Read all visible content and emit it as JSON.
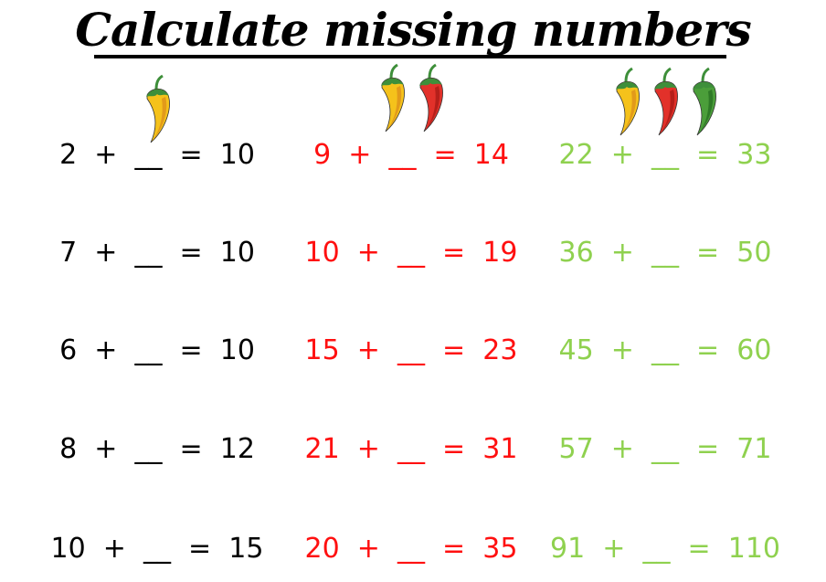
{
  "title": "Calculate missing numbers",
  "colors": {
    "easy": "#000000",
    "medium": "#ff1010",
    "hard": "#8fd14f"
  },
  "columns": [
    {
      "level": "easy",
      "chilis": [
        "yellow"
      ],
      "equations": [
        "2 + __ = 10",
        "7 + __ = 10",
        "6 + __ = 10",
        "8 + __ = 12",
        "10 + __ = 15"
      ]
    },
    {
      "level": "medium",
      "chilis": [
        "yellow",
        "red"
      ],
      "equations": [
        "9 + __ = 14",
        "10 + __ = 19",
        "15 + __ = 23",
        "21 + __ = 31",
        "20 + __ = 35"
      ]
    },
    {
      "level": "hard",
      "chilis": [
        "yellow",
        "red",
        "green"
      ],
      "equations": [
        "22 + __ = 33",
        "36 + __ = 50",
        "45 + __ = 60",
        "57 + __ = 71",
        "91 + __ = 110"
      ]
    }
  ]
}
